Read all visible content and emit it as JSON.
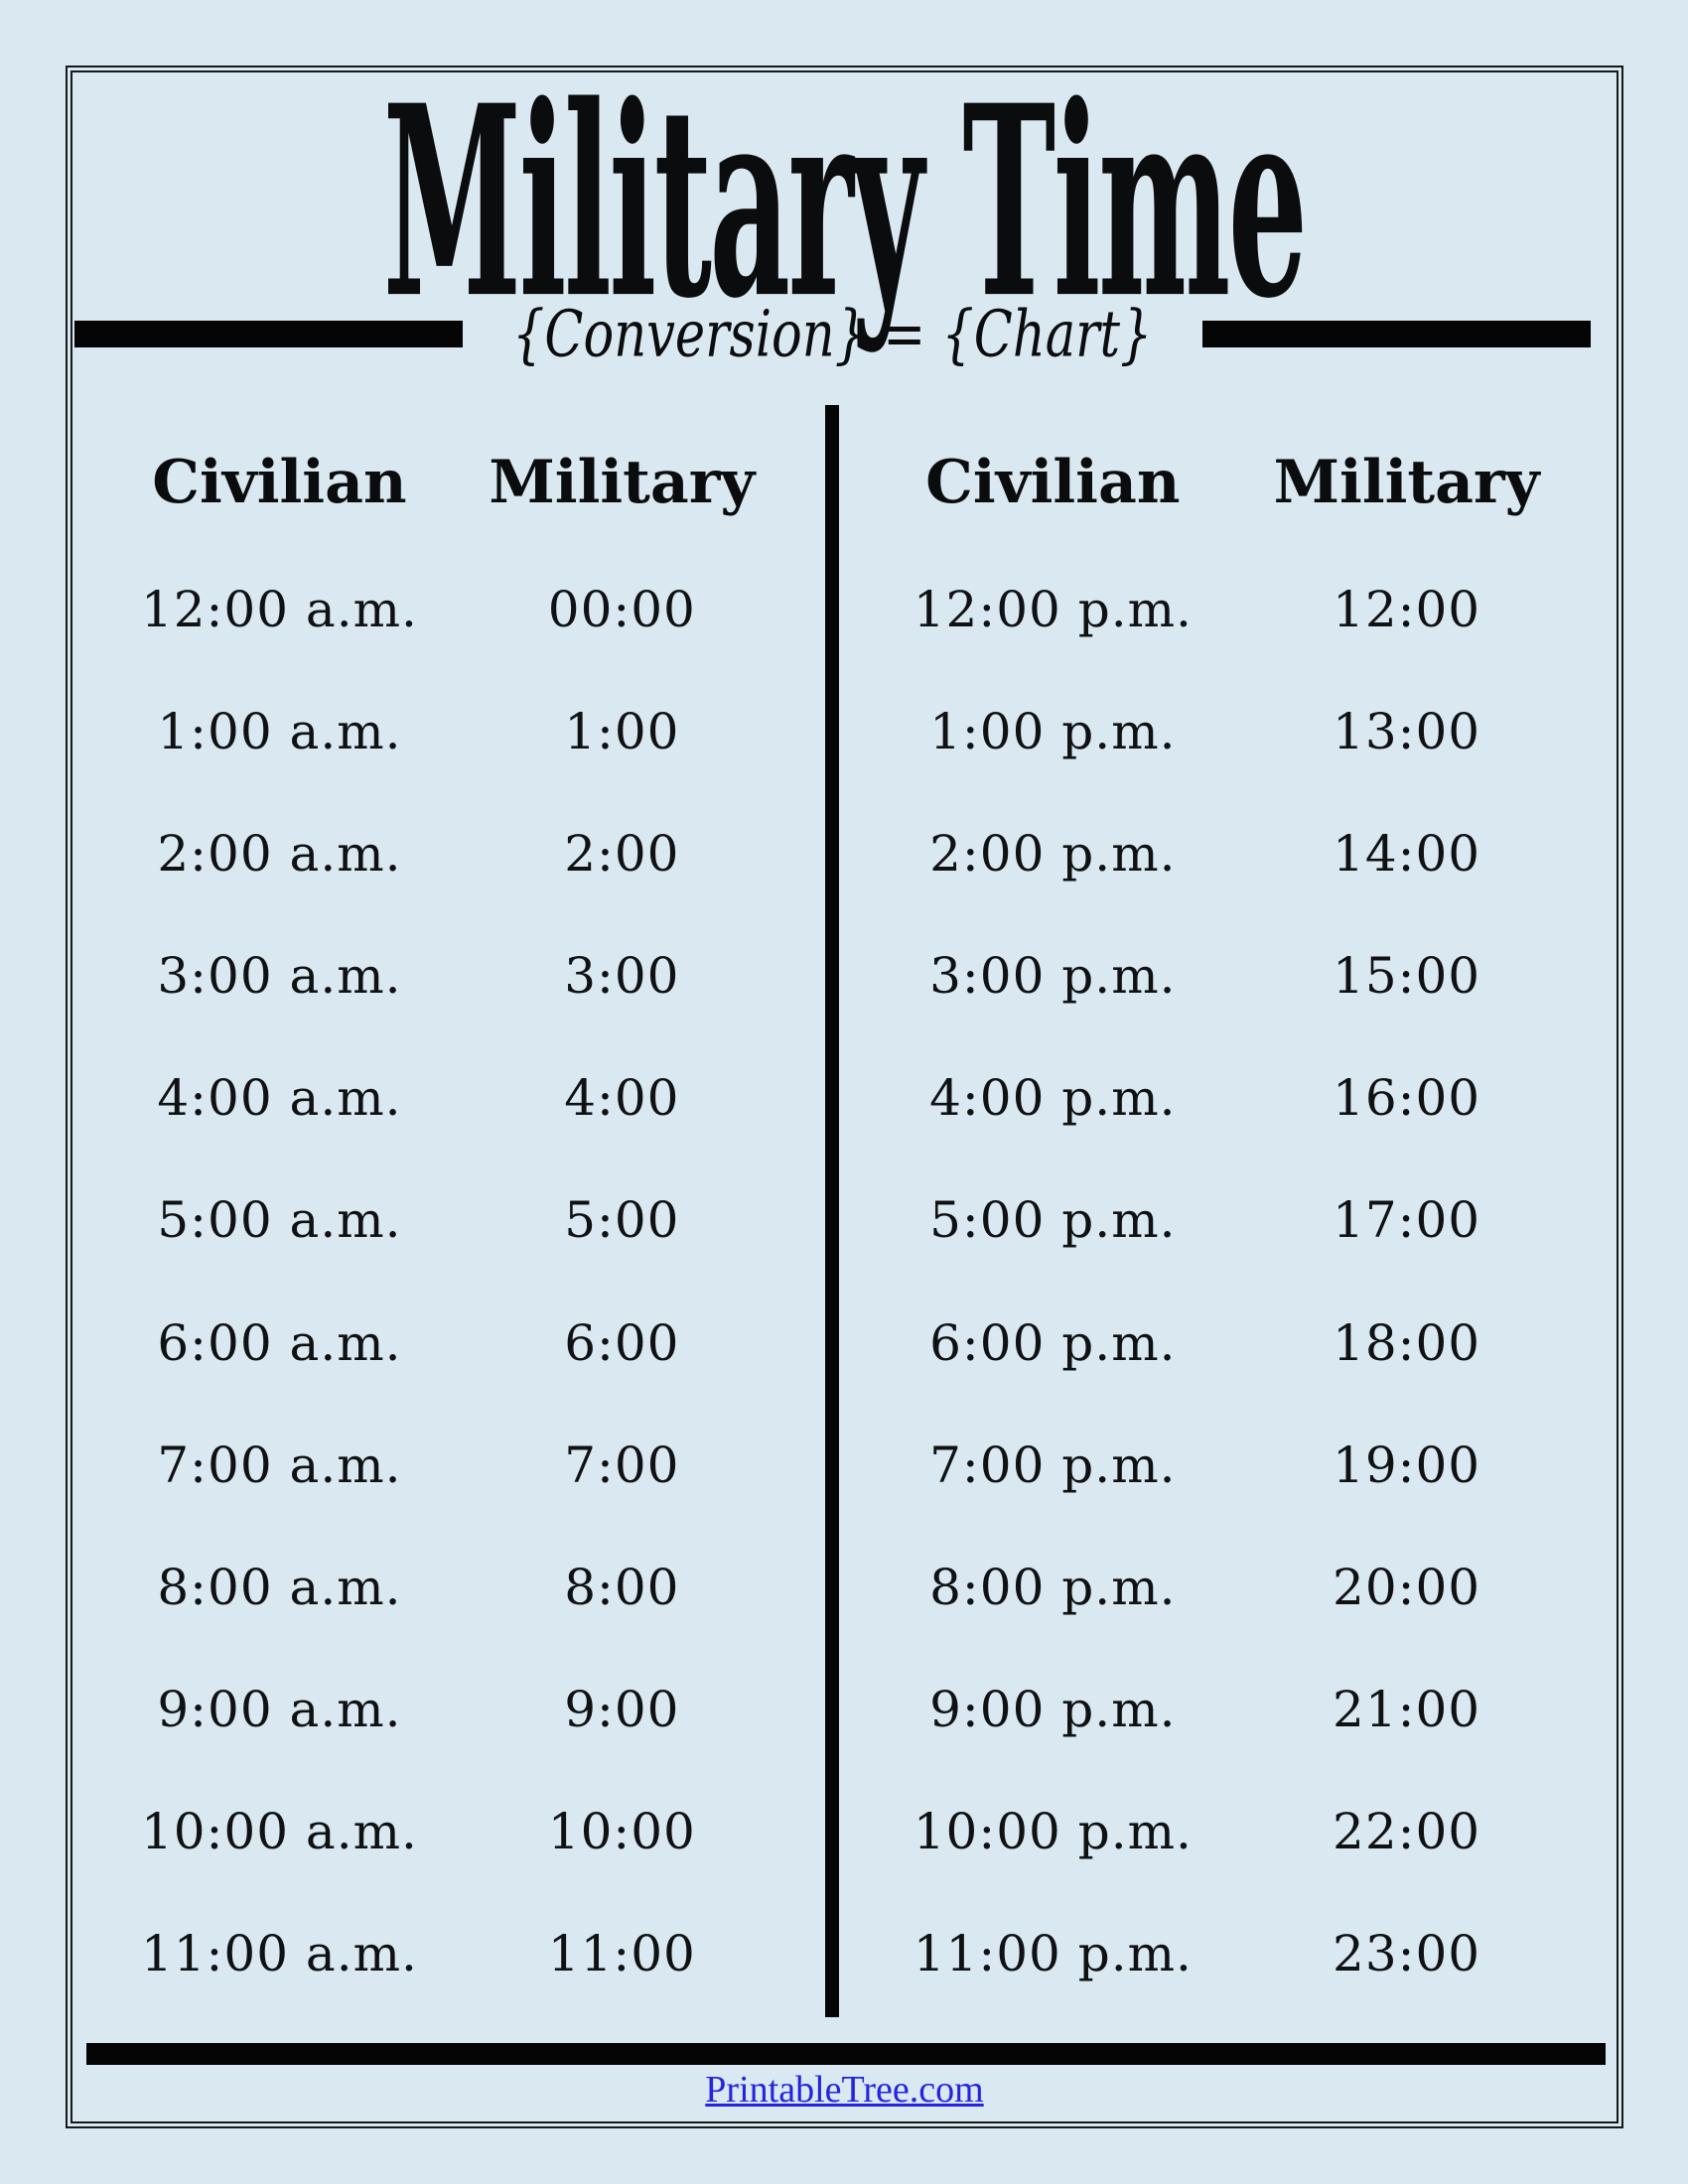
{
  "page": {
    "title": "Military Time",
    "subtitle": "{Conversion} = {Chart}",
    "footer_link": "PrintableTree.com"
  },
  "colors": {
    "background": "#d9e8f1",
    "ink": "#0b0c0d",
    "link_blue": "#2424e0"
  },
  "table": {
    "left": {
      "headers": [
        "Civilian",
        "Military"
      ],
      "rows": [
        [
          "12:00 a.m.",
          "00:00"
        ],
        [
          "1:00 a.m.",
          "1:00"
        ],
        [
          "2:00 a.m.",
          "2:00"
        ],
        [
          "3:00 a.m.",
          "3:00"
        ],
        [
          "4:00 a.m.",
          "4:00"
        ],
        [
          "5:00 a.m.",
          "5:00"
        ],
        [
          "6:00 a.m.",
          "6:00"
        ],
        [
          "7:00 a.m.",
          "7:00"
        ],
        [
          "8:00 a.m.",
          "8:00"
        ],
        [
          "9:00 a.m.",
          "9:00"
        ],
        [
          "10:00 a.m.",
          "10:00"
        ],
        [
          "11:00 a.m.",
          "11:00"
        ]
      ]
    },
    "right": {
      "headers": [
        "Civilian",
        "Military"
      ],
      "rows": [
        [
          "12:00 p.m.",
          "12:00"
        ],
        [
          "1:00 p.m.",
          "13:00"
        ],
        [
          "2:00 p.m.",
          "14:00"
        ],
        [
          "3:00 p.m.",
          "15:00"
        ],
        [
          "4:00 p.m.",
          "16:00"
        ],
        [
          "5:00 p.m.",
          "17:00"
        ],
        [
          "6:00 p.m.",
          "18:00"
        ],
        [
          "7:00 p.m.",
          "19:00"
        ],
        [
          "8:00 p.m.",
          "20:00"
        ],
        [
          "9:00 p.m.",
          "21:00"
        ],
        [
          "10:00 p.m.",
          "22:00"
        ],
        [
          "11:00 p.m.",
          "23:00"
        ]
      ]
    }
  }
}
